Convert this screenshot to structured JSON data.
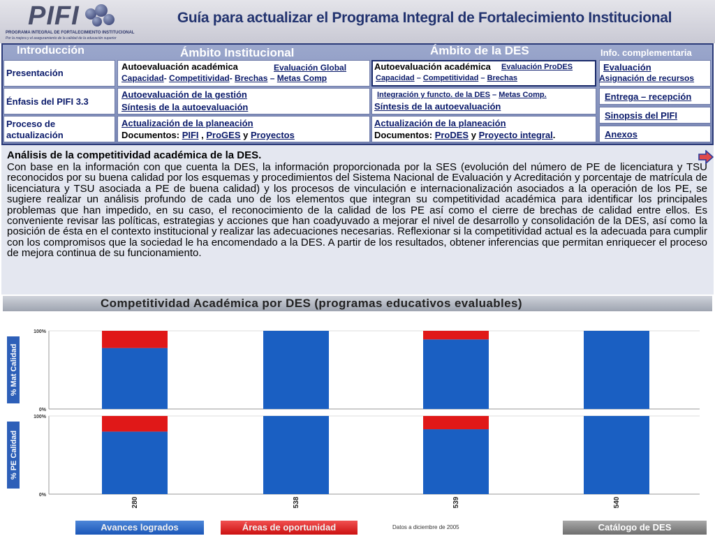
{
  "header": {
    "logo_text": "PIFI",
    "logo_sub1": "PROGRAMA INTEGRAL DE FORTALECIMIENTO INSTITUCIONAL",
    "logo_sub2": "Por la mejora y el aseguramiento de la calidad de la educación superior",
    "title": "Guía para actualizar el Programa Integral de Fortalecimiento Institucional"
  },
  "nav": {
    "col_headers": {
      "intro": "Introducción",
      "institucional": "Ámbito Institucional",
      "des": "Ámbito de la DES",
      "info": "Info. complementaria"
    },
    "intro_items": [
      "Presentación",
      "Énfasis del PIFI 3.3",
      "Proceso de actualización"
    ],
    "inst": {
      "r1_main": "Autoevaluación académica",
      "r1_eval": "Evaluación Global",
      "r1_sub": [
        "Capacidad",
        "Competitividad",
        "Brechas",
        "Metas Comp"
      ],
      "r2_line1": "Autoevaluación de la gestión",
      "r2_line2": "Síntesis de la autoevaluación",
      "r3_line1": "Actualización de la planeación",
      "r3_docs_label": "Documentos:",
      "r3_docs": [
        "PIFI",
        "ProGES",
        "Proyectos"
      ],
      "r3_y": "y"
    },
    "des": {
      "r1_main": "Autoevaluación académica",
      "r1_eval": "Evaluación ProDES",
      "r1_sub": [
        "Capacidad",
        "Competitividad",
        "Brechas"
      ],
      "r2_line1": "Integración y functo. de la DES",
      "r2_metas": "Metas Comp.",
      "r2_line2": "Síntesis de la autoevaluación",
      "r3_line1": "Actualización de la planeación",
      "r3_docs_label": "Documentos:",
      "r3_docs": [
        "ProDES",
        "Proyecto integral"
      ],
      "r3_y": "y"
    },
    "info_items": [
      "Evaluación",
      "Asignación de recursos",
      "Entrega – recepción",
      "Sinopsis del PIFI",
      "Anexos"
    ]
  },
  "section": {
    "title": "Análisis de la competitividad académica de la DES.",
    "body": "Con base en la información con que cuenta la DES, la información proporcionada por la SES (evolución del número de PE de licenciatura y TSU reconocidos por su buena calidad por los esquemas y procedimientos del Sistema Nacional de Evaluación y Acreditación y porcentaje de matrícula de licenciatura y TSU asociada a PE de buena calidad) y los procesos de vinculación e internacionalización asociados a la operación de los PE, se sugiere realizar un análisis profundo de cada uno de los elementos que integran su competitividad académica para identificar los principales problemas que han impedido, en su caso, el reconocimiento de la calidad de los PE así como el cierre de brechas de calidad entre ellos. Es conveniente revisar las políticas, estrategias y acciones que han coadyuvado a mejorar el nivel de desarrollo y consolidación de la DES, así como la posición de ésta en el contexto institucional y realizar las adecuaciones necesarias. Reflexionar si la competitividad actual es la adecuada para cumplir con los compromisos que la sociedad le ha encomendado a la DES. A partir de los resultados, obtener inferencias que permitan enriquecer el proceso de mejora continua de su funcionamiento."
  },
  "legend": {
    "achieved": "Avances logrados",
    "opportunity": "Áreas de oportunidad",
    "date_note": "Datos a diciembre de 2005",
    "catalog": "Catálogo de DES"
  },
  "colors": {
    "achieved": "#1a5fc2",
    "opportunity": "#e01818",
    "title": "#22336f"
  },
  "chart_data": {
    "type": "bar",
    "stacked": true,
    "title": "Competitividad Académica por DES (programas educativos evaluables)",
    "categories": [
      "280",
      "538",
      "539",
      "540"
    ],
    "panels": [
      {
        "ylabel": "% Mat Calidad",
        "ylim": [
          0,
          100
        ],
        "ticks": [
          "0%",
          "100%"
        ],
        "series": [
          {
            "name": "Avances logrados",
            "values": [
              78,
              100,
              89,
              100
            ]
          },
          {
            "name": "Áreas de oportunidad",
            "values": [
              22,
              0,
              11,
              0
            ]
          }
        ]
      },
      {
        "ylabel": "% PE Calidad",
        "ylim": [
          0,
          100
        ],
        "ticks": [
          "0%",
          "100%"
        ],
        "series": [
          {
            "name": "Avances logrados",
            "values": [
              80,
              100,
              83,
              100
            ]
          },
          {
            "name": "Áreas de oportunidad",
            "values": [
              20,
              0,
              17,
              0
            ]
          }
        ]
      }
    ],
    "legend": "bottom"
  }
}
